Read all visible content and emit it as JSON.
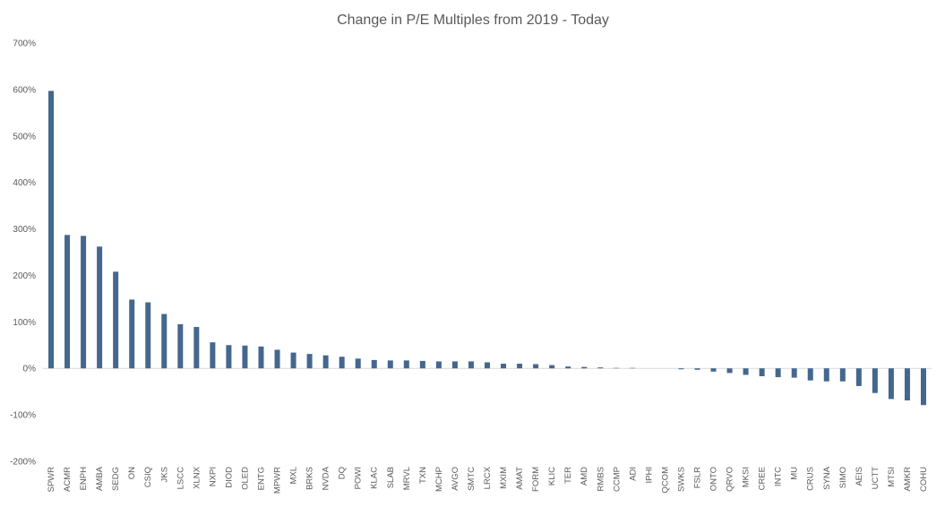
{
  "chart_data": {
    "type": "bar",
    "title": "Change in P/E Multiples from 2019 - Today",
    "xlabel": "",
    "ylabel": "",
    "ylim": [
      -200,
      700
    ],
    "yticks": [
      -200,
      -100,
      0,
      100,
      200,
      300,
      400,
      500,
      600,
      700
    ],
    "ytick_labels": [
      "-200%",
      "-100%",
      "0%",
      "100%",
      "200%",
      "300%",
      "400%",
      "500%",
      "600%",
      "700%"
    ],
    "bar_color": "#44678e",
    "grid": false,
    "legend": "none",
    "categories": [
      "SPWR",
      "ACMR",
      "ENPH",
      "AMBA",
      "SEDG",
      "ON",
      "CSIQ",
      "JKS",
      "LSCC",
      "XLNX",
      "NXPI",
      "DIOD",
      "OLED",
      "ENTG",
      "MPWR",
      "MXL",
      "BRKS",
      "NVDA",
      "DQ",
      "POWI",
      "KLAC",
      "SLAB",
      "MRVL",
      "TXN",
      "MCHP",
      "AVGO",
      "SMTC",
      "LRCX",
      "MXIM",
      "AMAT",
      "FORM",
      "KLIC",
      "TER",
      "AMD",
      "RMBS",
      "CCMP",
      "ADI",
      "IPHI",
      "QCOM",
      "SWKS",
      "FSLR",
      "ONTO",
      "QRVO",
      "MKSI",
      "CREE",
      "INTC",
      "MU",
      "CRUS",
      "SYNA",
      "SIMO",
      "AEIS",
      "UCTT",
      "MTSI",
      "AMKR",
      "COHU"
    ],
    "values": [
      597,
      287,
      285,
      262,
      208,
      148,
      142,
      117,
      95,
      89,
      56,
      50,
      49,
      47,
      40,
      34,
      31,
      28,
      25,
      21,
      18,
      17,
      17,
      16,
      15,
      15,
      15,
      13,
      10,
      10,
      9,
      7,
      4,
      3,
      2,
      1,
      1,
      0,
      0,
      -2,
      -3,
      -7,
      -10,
      -14,
      -17,
      -19,
      -20,
      -26,
      -28,
      -28,
      -38,
      -53,
      -66,
      -69,
      -79
    ]
  }
}
